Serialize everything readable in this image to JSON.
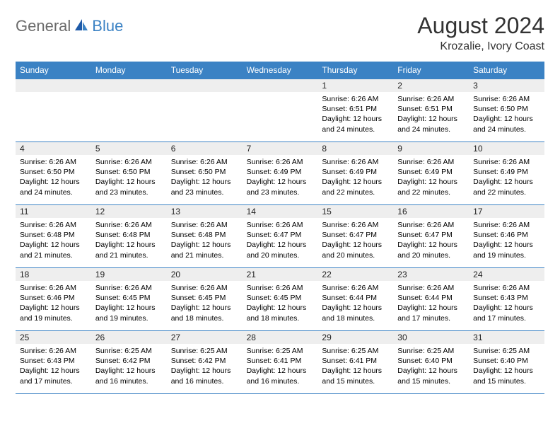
{
  "colors": {
    "header_bg": "#3b82c4",
    "header_fg": "#ffffff",
    "daynum_bg": "#eeeeee",
    "grid_line": "#3b82c4",
    "text": "#000000",
    "logo_gray": "#6b6b6b",
    "logo_blue": "#3b82c4"
  },
  "typography": {
    "title_fontsize": 32,
    "location_fontsize": 16,
    "dow_fontsize": 12,
    "daynum_fontsize": 12,
    "detail_fontsize": 10.5
  },
  "logo": {
    "general": "General",
    "blue": "Blue"
  },
  "title": "August 2024",
  "location": "Krozalie, Ivory Coast",
  "days_of_week": [
    "Sunday",
    "Monday",
    "Tuesday",
    "Wednesday",
    "Thursday",
    "Friday",
    "Saturday"
  ],
  "weeks": [
    [
      {
        "blank": true
      },
      {
        "blank": true
      },
      {
        "blank": true
      },
      {
        "blank": true
      },
      {
        "day": "1",
        "sunrise": "Sunrise: 6:26 AM",
        "sunset": "Sunset: 6:51 PM",
        "daylight": "Daylight: 12 hours and 24 minutes."
      },
      {
        "day": "2",
        "sunrise": "Sunrise: 6:26 AM",
        "sunset": "Sunset: 6:51 PM",
        "daylight": "Daylight: 12 hours and 24 minutes."
      },
      {
        "day": "3",
        "sunrise": "Sunrise: 6:26 AM",
        "sunset": "Sunset: 6:50 PM",
        "daylight": "Daylight: 12 hours and 24 minutes."
      }
    ],
    [
      {
        "day": "4",
        "sunrise": "Sunrise: 6:26 AM",
        "sunset": "Sunset: 6:50 PM",
        "daylight": "Daylight: 12 hours and 24 minutes."
      },
      {
        "day": "5",
        "sunrise": "Sunrise: 6:26 AM",
        "sunset": "Sunset: 6:50 PM",
        "daylight": "Daylight: 12 hours and 23 minutes."
      },
      {
        "day": "6",
        "sunrise": "Sunrise: 6:26 AM",
        "sunset": "Sunset: 6:50 PM",
        "daylight": "Daylight: 12 hours and 23 minutes."
      },
      {
        "day": "7",
        "sunrise": "Sunrise: 6:26 AM",
        "sunset": "Sunset: 6:49 PM",
        "daylight": "Daylight: 12 hours and 23 minutes."
      },
      {
        "day": "8",
        "sunrise": "Sunrise: 6:26 AM",
        "sunset": "Sunset: 6:49 PM",
        "daylight": "Daylight: 12 hours and 22 minutes."
      },
      {
        "day": "9",
        "sunrise": "Sunrise: 6:26 AM",
        "sunset": "Sunset: 6:49 PM",
        "daylight": "Daylight: 12 hours and 22 minutes."
      },
      {
        "day": "10",
        "sunrise": "Sunrise: 6:26 AM",
        "sunset": "Sunset: 6:49 PM",
        "daylight": "Daylight: 12 hours and 22 minutes."
      }
    ],
    [
      {
        "day": "11",
        "sunrise": "Sunrise: 6:26 AM",
        "sunset": "Sunset: 6:48 PM",
        "daylight": "Daylight: 12 hours and 21 minutes."
      },
      {
        "day": "12",
        "sunrise": "Sunrise: 6:26 AM",
        "sunset": "Sunset: 6:48 PM",
        "daylight": "Daylight: 12 hours and 21 minutes."
      },
      {
        "day": "13",
        "sunrise": "Sunrise: 6:26 AM",
        "sunset": "Sunset: 6:48 PM",
        "daylight": "Daylight: 12 hours and 21 minutes."
      },
      {
        "day": "14",
        "sunrise": "Sunrise: 6:26 AM",
        "sunset": "Sunset: 6:47 PM",
        "daylight": "Daylight: 12 hours and 20 minutes."
      },
      {
        "day": "15",
        "sunrise": "Sunrise: 6:26 AM",
        "sunset": "Sunset: 6:47 PM",
        "daylight": "Daylight: 12 hours and 20 minutes."
      },
      {
        "day": "16",
        "sunrise": "Sunrise: 6:26 AM",
        "sunset": "Sunset: 6:47 PM",
        "daylight": "Daylight: 12 hours and 20 minutes."
      },
      {
        "day": "17",
        "sunrise": "Sunrise: 6:26 AM",
        "sunset": "Sunset: 6:46 PM",
        "daylight": "Daylight: 12 hours and 19 minutes."
      }
    ],
    [
      {
        "day": "18",
        "sunrise": "Sunrise: 6:26 AM",
        "sunset": "Sunset: 6:46 PM",
        "daylight": "Daylight: 12 hours and 19 minutes."
      },
      {
        "day": "19",
        "sunrise": "Sunrise: 6:26 AM",
        "sunset": "Sunset: 6:45 PM",
        "daylight": "Daylight: 12 hours and 19 minutes."
      },
      {
        "day": "20",
        "sunrise": "Sunrise: 6:26 AM",
        "sunset": "Sunset: 6:45 PM",
        "daylight": "Daylight: 12 hours and 18 minutes."
      },
      {
        "day": "21",
        "sunrise": "Sunrise: 6:26 AM",
        "sunset": "Sunset: 6:45 PM",
        "daylight": "Daylight: 12 hours and 18 minutes."
      },
      {
        "day": "22",
        "sunrise": "Sunrise: 6:26 AM",
        "sunset": "Sunset: 6:44 PM",
        "daylight": "Daylight: 12 hours and 18 minutes."
      },
      {
        "day": "23",
        "sunrise": "Sunrise: 6:26 AM",
        "sunset": "Sunset: 6:44 PM",
        "daylight": "Daylight: 12 hours and 17 minutes."
      },
      {
        "day": "24",
        "sunrise": "Sunrise: 6:26 AM",
        "sunset": "Sunset: 6:43 PM",
        "daylight": "Daylight: 12 hours and 17 minutes."
      }
    ],
    [
      {
        "day": "25",
        "sunrise": "Sunrise: 6:26 AM",
        "sunset": "Sunset: 6:43 PM",
        "daylight": "Daylight: 12 hours and 17 minutes."
      },
      {
        "day": "26",
        "sunrise": "Sunrise: 6:25 AM",
        "sunset": "Sunset: 6:42 PM",
        "daylight": "Daylight: 12 hours and 16 minutes."
      },
      {
        "day": "27",
        "sunrise": "Sunrise: 6:25 AM",
        "sunset": "Sunset: 6:42 PM",
        "daylight": "Daylight: 12 hours and 16 minutes."
      },
      {
        "day": "28",
        "sunrise": "Sunrise: 6:25 AM",
        "sunset": "Sunset: 6:41 PM",
        "daylight": "Daylight: 12 hours and 16 minutes."
      },
      {
        "day": "29",
        "sunrise": "Sunrise: 6:25 AM",
        "sunset": "Sunset: 6:41 PM",
        "daylight": "Daylight: 12 hours and 15 minutes."
      },
      {
        "day": "30",
        "sunrise": "Sunrise: 6:25 AM",
        "sunset": "Sunset: 6:40 PM",
        "daylight": "Daylight: 12 hours and 15 minutes."
      },
      {
        "day": "31",
        "sunrise": "Sunrise: 6:25 AM",
        "sunset": "Sunset: 6:40 PM",
        "daylight": "Daylight: 12 hours and 15 minutes."
      }
    ]
  ]
}
